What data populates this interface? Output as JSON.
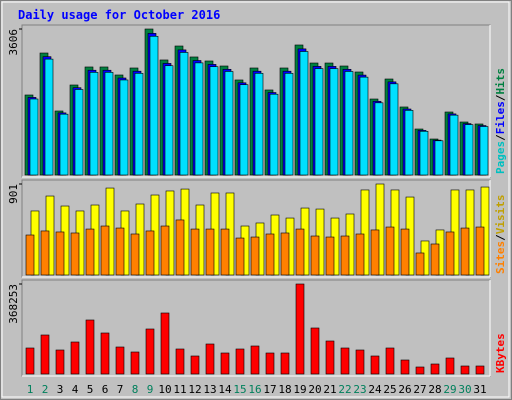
{
  "chart_data": [
    {
      "type": "bar",
      "title": "Daily usage for October 2016",
      "categories": [
        "1",
        "2",
        "3",
        "4",
        "5",
        "6",
        "7",
        "8",
        "9",
        "10",
        "11",
        "12",
        "13",
        "14",
        "15",
        "16",
        "17",
        "18",
        "19",
        "20",
        "21",
        "22",
        "23",
        "24",
        "25",
        "26",
        "27",
        "28",
        "29",
        "30",
        "31"
      ],
      "highlight": [
        0,
        1,
        7,
        8,
        14,
        15,
        21,
        22,
        28,
        29
      ],
      "highlight_color": "#00805c",
      "legend_separator": "/",
      "ylim": [
        0,
        3606
      ],
      "yticks": [
        3606
      ],
      "series": [
        {
          "name": "Hits",
          "color": "#008040",
          "values": [
            1976,
            3013,
            1581,
            2223,
            2668,
            2668,
            2470,
            2643,
            3606,
            2841,
            3186,
            2915,
            2816,
            2692,
            2347,
            2643,
            2100,
            2643,
            3211,
            2766,
            2766,
            2692,
            2544,
            1877,
            2371,
            1680,
            1136,
            889,
            1556,
            1309,
            1260
          ]
        },
        {
          "name": "Files",
          "color": "#0000ff",
          "values": [
            1917,
            2923,
            1534,
            2156,
            2588,
            2588,
            2396,
            2564,
            3498,
            2756,
            3090,
            2828,
            2732,
            2611,
            2277,
            2564,
            2037,
            2564,
            3115,
            2683,
            2683,
            2611,
            2468,
            1821,
            2300,
            1630,
            1102,
            862,
            1509,
            1270,
            1222
          ]
        },
        {
          "name": "Pages",
          "color": "#00e0ff",
          "values": [
            1877,
            2862,
            1502,
            2112,
            2535,
            2535,
            2347,
            2511,
            3426,
            2699,
            3027,
            2769,
            2675,
            2557,
            2230,
            2511,
            1995,
            2511,
            3050,
            2628,
            2628,
            2557,
            2417,
            1783,
            2252,
            1596,
            1079,
            845,
            1478,
            1244,
            1197
          ]
        }
      ]
    },
    {
      "type": "bar",
      "ylim": [
        0,
        901
      ],
      "yticks": [
        901
      ],
      "series": [
        {
          "name": "Visits",
          "color": "#ffff00",
          "values": [
            634,
            782,
            683,
            634,
            693,
            861,
            634,
            703,
            792,
            832,
            851,
            693,
            812,
            812,
            485,
            515,
            594,
            564,
            663,
            653,
            564,
            604,
            842,
            901,
            842,
            772,
            337,
            446,
            842,
            842,
            871
          ]
        },
        {
          "name": "Sites",
          "color": "#ff8000",
          "values": [
            396,
            436,
            426,
            416,
            455,
            485,
            465,
            406,
            436,
            485,
            545,
            455,
            455,
            455,
            366,
            376,
            406,
            416,
            455,
            386,
            376,
            386,
            406,
            446,
            475,
            455,
            218,
            307,
            426,
            465,
            475
          ]
        }
      ]
    },
    {
      "type": "bar",
      "ylim": [
        0,
        368253
      ],
      "yticks": [
        368253
      ],
      "series": [
        {
          "name": "KBytes",
          "color": "#ff0000",
          "values": [
            106392,
            159588,
            98208,
            130944,
            220968,
            167772,
            110484,
            90024,
            184140,
            249612,
            102300,
            73656,
            122760,
            85932,
            102300,
            114576,
            85932,
            85932,
            368253,
            188232,
            135036,
            106392,
            98208,
            73656,
            106392,
            57288,
            28644,
            40920,
            65472,
            32736,
            32736
          ]
        }
      ]
    }
  ]
}
